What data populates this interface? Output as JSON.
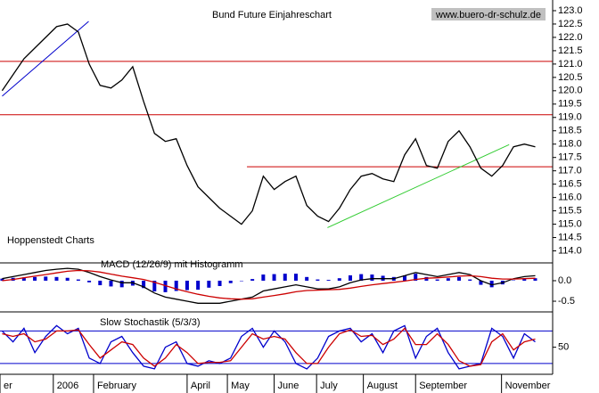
{
  "chart_data": [
    {
      "type": "line",
      "title": "Bund Future Einjahreschart",
      "source": "www.buero-dr-schulz.de",
      "annotation": "Hoppenstedt Charts",
      "x": [
        0,
        1,
        2,
        3,
        4,
        5,
        6,
        7,
        8,
        9,
        10,
        11,
        12,
        13,
        14,
        15,
        16,
        17,
        18,
        19,
        20,
        21,
        22,
        23,
        24,
        25,
        26,
        27,
        28,
        29,
        30,
        31,
        32,
        33,
        34,
        35,
        36,
        37,
        38,
        39,
        40,
        41,
        42,
        43,
        44,
        45,
        46,
        47,
        48,
        49
      ],
      "series": [
        {
          "color": "#000000",
          "values": [
            120.0,
            120.6,
            121.2,
            121.6,
            122.0,
            122.4,
            122.5,
            122.2,
            121.0,
            120.2,
            120.1,
            120.4,
            120.9,
            119.6,
            118.4,
            118.1,
            118.2,
            117.2,
            116.4,
            116.0,
            115.6,
            115.3,
            115.0,
            115.5,
            116.8,
            116.3,
            116.6,
            116.8,
            115.7,
            115.3,
            115.1,
            115.6,
            116.3,
            116.8,
            116.9,
            116.7,
            116.6,
            117.6,
            118.2,
            117.2,
            117.1,
            118.1,
            118.5,
            117.9,
            117.1,
            116.8,
            117.2,
            117.9,
            118.0,
            117.9
          ]
        }
      ],
      "hlines": [
        {
          "value": 121.1,
          "color": "#cc0000"
        },
        {
          "value": 119.1,
          "color": "#cc0000"
        },
        {
          "value": 117.15,
          "from": 22.5,
          "color": "#cc0000"
        }
      ],
      "trend_lines": [
        {
          "color": "#0000cc",
          "x": [
            0,
            7.95
          ],
          "y": [
            119.8,
            122.6
          ]
        },
        {
          "color": "#33cc33",
          "x": [
            29.9,
            46.6
          ],
          "y": [
            114.87,
            117.98
          ]
        }
      ],
      "xlim": [
        -0.2,
        50.6
      ],
      "ylim": [
        113.55,
        123.4
      ],
      "xticks": [
        {
          "value": -0.2,
          "label": "er"
        },
        {
          "value": 4.7,
          "label": "2006"
        },
        {
          "value": 8.4,
          "label": "February"
        },
        {
          "value": 17,
          "label": "April"
        },
        {
          "value": 20.7,
          "label": "May"
        },
        {
          "value": 25,
          "label": "June"
        },
        {
          "value": 28.9,
          "label": "July"
        },
        {
          "value": 33.2,
          "label": "August"
        },
        {
          "value": 38,
          "label": "September"
        },
        {
          "value": 45.9,
          "label": "November"
        }
      ],
      "yticks": [
        {
          "value": 114,
          "label": "114.0"
        },
        114.5,
        {
          "value": 115,
          "label": "115.0"
        },
        115.5,
        {
          "value": 116,
          "label": "116.0"
        },
        116.5,
        {
          "value": 117,
          "label": "117.0"
        },
        117.5,
        {
          "value": 118,
          "label": "118.0"
        },
        118.5,
        {
          "value": 119,
          "label": "119.0"
        },
        119.5,
        {
          "value": 120,
          "label": "120.0"
        },
        120.5,
        {
          "value": 121,
          "label": "121.0"
        },
        121.5,
        {
          "value": 122,
          "label": "122.0"
        },
        122.5,
        {
          "value": 123,
          "label": "123.0"
        }
      ]
    },
    {
      "type": "line",
      "title": "MACD (12/26/9) mit Histogramm",
      "series": [
        {
          "style": "bar",
          "color": "#0000cc",
          "values": [
            0.05,
            0.07,
            0.08,
            0.09,
            0.1,
            0.09,
            0.07,
            0.03,
            -0.04,
            -0.11,
            -0.14,
            -0.16,
            -0.12,
            -0.18,
            -0.26,
            -0.28,
            -0.25,
            -0.23,
            -0.22,
            -0.17,
            -0.13,
            -0.06,
            0,
            0.04,
            0.15,
            0.16,
            0.17,
            0.17,
            0.09,
            0.03,
            0.02,
            0.06,
            0.13,
            0.16,
            0.15,
            0.12,
            0.09,
            0.13,
            0.17,
            0.09,
            0.03,
            0.06,
            0.09,
            0.03,
            -0.1,
            -0.16,
            -0.09,
            0.01,
            0.05,
            0.06
          ]
        },
        {
          "color": "#000000",
          "values": [
            0.05,
            0.1,
            0.15,
            0.2,
            0.25,
            0.28,
            0.3,
            0.28,
            0.2,
            0.1,
            0.02,
            -0.05,
            -0.05,
            -0.15,
            -0.3,
            -0.4,
            -0.45,
            -0.5,
            -0.55,
            -0.55,
            -0.55,
            -0.5,
            -0.45,
            -0.4,
            -0.25,
            -0.2,
            -0.15,
            -0.1,
            -0.15,
            -0.2,
            -0.2,
            -0.15,
            -0.05,
            0.02,
            0.05,
            0.05,
            0.05,
            0.12,
            0.2,
            0.15,
            0.1,
            0.15,
            0.2,
            0.15,
            0.0,
            -0.1,
            -0.05,
            0.05,
            0.1,
            0.12
          ]
        },
        {
          "color": "#cc0000",
          "values": [
            0.0,
            0.03,
            0.07,
            0.11,
            0.15,
            0.19,
            0.23,
            0.25,
            0.24,
            0.21,
            0.16,
            0.11,
            0.07,
            0.03,
            -0.04,
            -0.12,
            -0.2,
            -0.27,
            -0.33,
            -0.38,
            -0.42,
            -0.44,
            -0.45,
            -0.44,
            -0.4,
            -0.36,
            -0.32,
            -0.27,
            -0.24,
            -0.23,
            -0.22,
            -0.21,
            -0.18,
            -0.14,
            -0.1,
            -0.07,
            -0.04,
            -0.01,
            0.03,
            0.06,
            0.07,
            0.09,
            0.11,
            0.12,
            0.1,
            0.06,
            0.04,
            0.04,
            0.05,
            0.06
          ]
        }
      ],
      "ylim": [
        -0.76,
        0.39
      ],
      "yticks": [
        {
          "value": 0,
          "label": "0.0"
        },
        {
          "value": -0.5,
          "label": "-0.5"
        }
      ]
    },
    {
      "type": "line",
      "title": "Slow Stochastik (5/3/3)",
      "series": [
        {
          "color": "#0000cc",
          "values": [
            80,
            60,
            85,
            40,
            70,
            90,
            75,
            85,
            30,
            20,
            60,
            70,
            40,
            15,
            10,
            50,
            60,
            20,
            15,
            25,
            20,
            30,
            70,
            85,
            50,
            80,
            60,
            20,
            10,
            30,
            70,
            80,
            85,
            60,
            75,
            40,
            80,
            90,
            30,
            70,
            85,
            40,
            10,
            15,
            20,
            85,
            70,
            30,
            75,
            60
          ]
        },
        {
          "color": "#cc0000",
          "values": [
            75,
            70,
            75,
            60,
            65,
            80,
            80,
            82,
            55,
            30,
            45,
            60,
            55,
            30,
            15,
            30,
            55,
            40,
            20,
            22,
            22,
            25,
            50,
            75,
            65,
            70,
            65,
            40,
            20,
            20,
            50,
            75,
            82,
            70,
            72,
            55,
            65,
            85,
            55,
            55,
            75,
            55,
            25,
            15,
            18,
            60,
            75,
            45,
            60,
            65
          ]
        }
      ],
      "ref_lines": [
        80,
        20
      ],
      "ref_color": "#0000cc",
      "ylim": [
        0,
        112
      ],
      "yticks": [
        50
      ]
    }
  ]
}
